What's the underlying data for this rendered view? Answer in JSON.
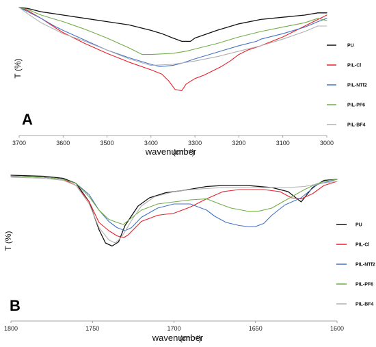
{
  "chart_data": [
    {
      "type": "line",
      "panel_label": "A",
      "xlabel": "wavenumber",
      "xunit": "(cm⁻¹)",
      "ylabel": "T (%)",
      "xlim": [
        3700,
        3000
      ],
      "ylim": [
        0,
        100
      ],
      "ticks": [
        "3700",
        "3600",
        "3500",
        "3400",
        "3300",
        "3200",
        "3100",
        "3000"
      ],
      "series": [
        {
          "name": "PU",
          "color": "#111111",
          "x": [
            3700,
            3680,
            3650,
            3600,
            3550,
            3500,
            3450,
            3400,
            3375,
            3350,
            3330,
            3310,
            3300,
            3250,
            3200,
            3150,
            3100,
            3050,
            3020,
            3000
          ],
          "y": [
            97,
            96,
            93,
            90,
            87,
            84,
            81,
            76,
            73,
            69,
            66,
            66,
            69,
            76,
            82,
            86,
            88,
            90,
            92,
            92
          ]
        },
        {
          "name": "PIL-Cl",
          "color": "#e8202a",
          "x": [
            3700,
            3680,
            3650,
            3620,
            3600,
            3550,
            3500,
            3450,
            3400,
            3375,
            3360,
            3345,
            3330,
            3320,
            3300,
            3280,
            3260,
            3240,
            3220,
            3200,
            3180,
            3150,
            3100,
            3050,
            3000
          ],
          "y": [
            97,
            94,
            87,
            79,
            74,
            64,
            55,
            47,
            40,
            36,
            30,
            22,
            21,
            27,
            32,
            35,
            39,
            43,
            48,
            54,
            58,
            62,
            70,
            80,
            90
          ]
        },
        {
          "name": "PIL-NTf2",
          "color": "#4472c4",
          "x": [
            3700,
            3680,
            3650,
            3620,
            3600,
            3550,
            3500,
            3450,
            3400,
            3380,
            3350,
            3330,
            3300,
            3250,
            3200,
            3160,
            3150,
            3100,
            3050,
            3020,
            3000
          ],
          "y": [
            97,
            93,
            87,
            80,
            76,
            67,
            58,
            51,
            45,
            43,
            44,
            46,
            50,
            56,
            62,
            66,
            68,
            73,
            79,
            84,
            87
          ]
        },
        {
          "name": "PIL-PF6",
          "color": "#70ad47",
          "x": [
            3700,
            3680,
            3650,
            3600,
            3550,
            3500,
            3450,
            3420,
            3400,
            3350,
            3320,
            3300,
            3250,
            3200,
            3150,
            3100,
            3050,
            3020,
            3000
          ],
          "y": [
            97,
            95,
            90,
            84,
            77,
            69,
            60,
            54,
            54,
            55,
            57,
            59,
            64,
            70,
            75,
            79,
            83,
            87,
            85
          ]
        },
        {
          "name": "PIL-BF4",
          "color": "#b0b0b0",
          "x": [
            3700,
            3680,
            3650,
            3620,
            3600,
            3550,
            3500,
            3450,
            3400,
            3350,
            3300,
            3250,
            3200,
            3150,
            3100,
            3050,
            3020,
            3000
          ],
          "y": [
            97,
            91,
            83,
            77,
            73,
            66,
            58,
            50,
            44,
            45,
            48,
            52,
            57,
            62,
            68,
            75,
            80,
            80
          ]
        }
      ]
    },
    {
      "type": "line",
      "panel_label": "B",
      "xlabel": "wavenumber",
      "xunit": "(cm⁻¹)",
      "ylabel": "T (%)",
      "xlim": [
        1800,
        1600
      ],
      "ylim": [
        0,
        100
      ],
      "ticks": [
        "1800",
        "1750",
        "1700",
        "1650",
        "1600"
      ],
      "series": [
        {
          "name": "PU",
          "color": "#111111",
          "x": [
            1800,
            1780,
            1768,
            1760,
            1752,
            1746,
            1742,
            1738,
            1734,
            1730,
            1722,
            1715,
            1705,
            1695,
            1680,
            1670,
            1655,
            1640,
            1630,
            1622,
            1615,
            1608,
            1600
          ],
          "y": [
            96,
            95,
            93,
            88,
            70,
            43,
            30,
            27,
            31,
            47,
            66,
            74,
            79,
            81,
            85,
            86,
            86,
            84,
            80,
            70,
            84,
            91,
            92
          ]
        },
        {
          "name": "PIL-Cl",
          "color": "#e8202a",
          "x": [
            1800,
            1780,
            1768,
            1760,
            1752,
            1746,
            1740,
            1735,
            1731,
            1728,
            1720,
            1710,
            1700,
            1690,
            1680,
            1670,
            1660,
            1645,
            1635,
            1628,
            1622,
            1615,
            1608,
            1600
          ],
          "y": [
            95,
            94,
            92,
            86,
            70,
            50,
            42,
            37,
            35,
            38,
            51,
            57,
            59,
            65,
            73,
            80,
            82,
            82,
            80,
            74,
            73,
            78,
            86,
            90
          ]
        },
        {
          "name": "PIL-NTf2",
          "color": "#4472c4",
          "x": [
            1800,
            1780,
            1768,
            1760,
            1752,
            1746,
            1740,
            1735,
            1730,
            1726,
            1720,
            1710,
            1700,
            1690,
            1680,
            1675,
            1668,
            1660,
            1655,
            1650,
            1645,
            1640,
            1632,
            1622,
            1612,
            1600
          ],
          "y": [
            95,
            94,
            92,
            88,
            77,
            62,
            51,
            45,
            42,
            45,
            55,
            64,
            68,
            68,
            62,
            56,
            50,
            47,
            46,
            46,
            49,
            57,
            67,
            74,
            87,
            92
          ]
        },
        {
          "name": "PIL-PF6",
          "color": "#70ad47",
          "x": [
            1800,
            1780,
            1768,
            1760,
            1752,
            1746,
            1740,
            1735,
            1731,
            1728,
            1720,
            1710,
            1700,
            1690,
            1680,
            1672,
            1665,
            1655,
            1648,
            1640,
            1630,
            1620,
            1612,
            1605,
            1600
          ],
          "y": [
            95,
            94,
            92,
            88,
            75,
            62,
            53,
            50,
            48,
            52,
            62,
            68,
            70,
            72,
            73,
            68,
            64,
            61,
            61,
            64,
            73,
            82,
            88,
            91,
            92
          ]
        },
        {
          "name": "PIL-BF4",
          "color": "#b0b0b0",
          "x": [
            1800,
            1780,
            1768,
            1760,
            1752,
            1746,
            1740,
            1736,
            1732,
            1726,
            1720,
            1712,
            1700,
            1690,
            1680,
            1670,
            1660,
            1650,
            1640,
            1630,
            1620,
            1610,
            1600
          ],
          "y": [
            94,
            93,
            91,
            86,
            68,
            45,
            33,
            30,
            36,
            52,
            66,
            75,
            80,
            82,
            83,
            84,
            84,
            84,
            84,
            84,
            85,
            88,
            90
          ]
        }
      ]
    }
  ]
}
